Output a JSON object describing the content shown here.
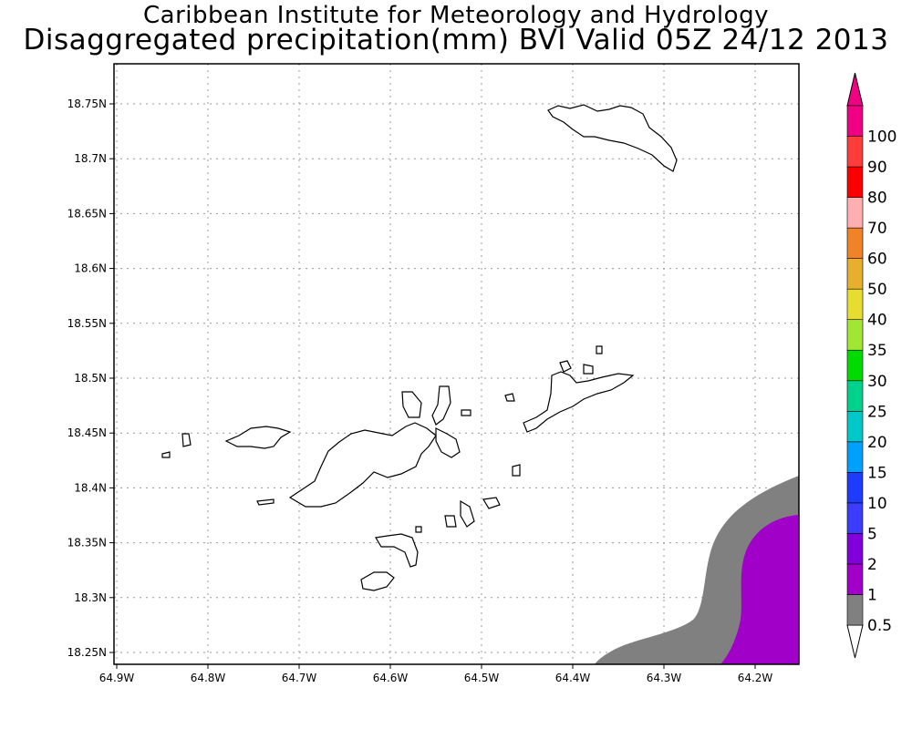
{
  "title_line1": "Caribbean Institute for Meteorology and Hydrology",
  "title_line2": "Disaggregated precipitation(mm) BVI Valid 05Z 24/12 2013",
  "lon_ticks": [
    "64.9W",
    "64.8W",
    "64.7W",
    "64.6W",
    "64.5W",
    "64.4W",
    "64.3W",
    "64.2W"
  ],
  "lat_ticks": [
    "18.75N",
    "18.7N",
    "18.65N",
    "18.6N",
    "18.55N",
    "18.5N",
    "18.45N",
    "18.4N",
    "18.35N",
    "18.3N",
    "18.25N"
  ],
  "lon_values": [
    -64.9,
    -64.8,
    -64.7,
    -64.6,
    -64.5,
    -64.4,
    -64.3,
    -64.2
  ],
  "lat_values": [
    18.75,
    18.7,
    18.65,
    18.6,
    18.55,
    18.5,
    18.45,
    18.4,
    18.35,
    18.3,
    18.25
  ],
  "colorbar": {
    "levels": [
      "0.5",
      "1",
      "2",
      "5",
      "10",
      "15",
      "20",
      "25",
      "30",
      "35",
      "40",
      "50",
      "60",
      "70",
      "80",
      "90",
      "100"
    ],
    "colors": [
      "#808080",
      "#a000c8",
      "#8200dc",
      "#3c3cff",
      "#1e3cff",
      "#00a0ff",
      "#00c8c8",
      "#00d28c",
      "#00dc00",
      "#a0e632",
      "#e6dc32",
      "#e6af2d",
      "#f08228",
      "#ffafaf",
      "#fa0000",
      "#ff3c3c",
      "#f00082"
    ],
    "low_arrow_color": "#ffffff",
    "high_arrow_color": "#f00082"
  },
  "legend_meaning": {
    "gray": "0.5 to 1 mm",
    "purple": "1 to 2 mm"
  },
  "grid": true
}
